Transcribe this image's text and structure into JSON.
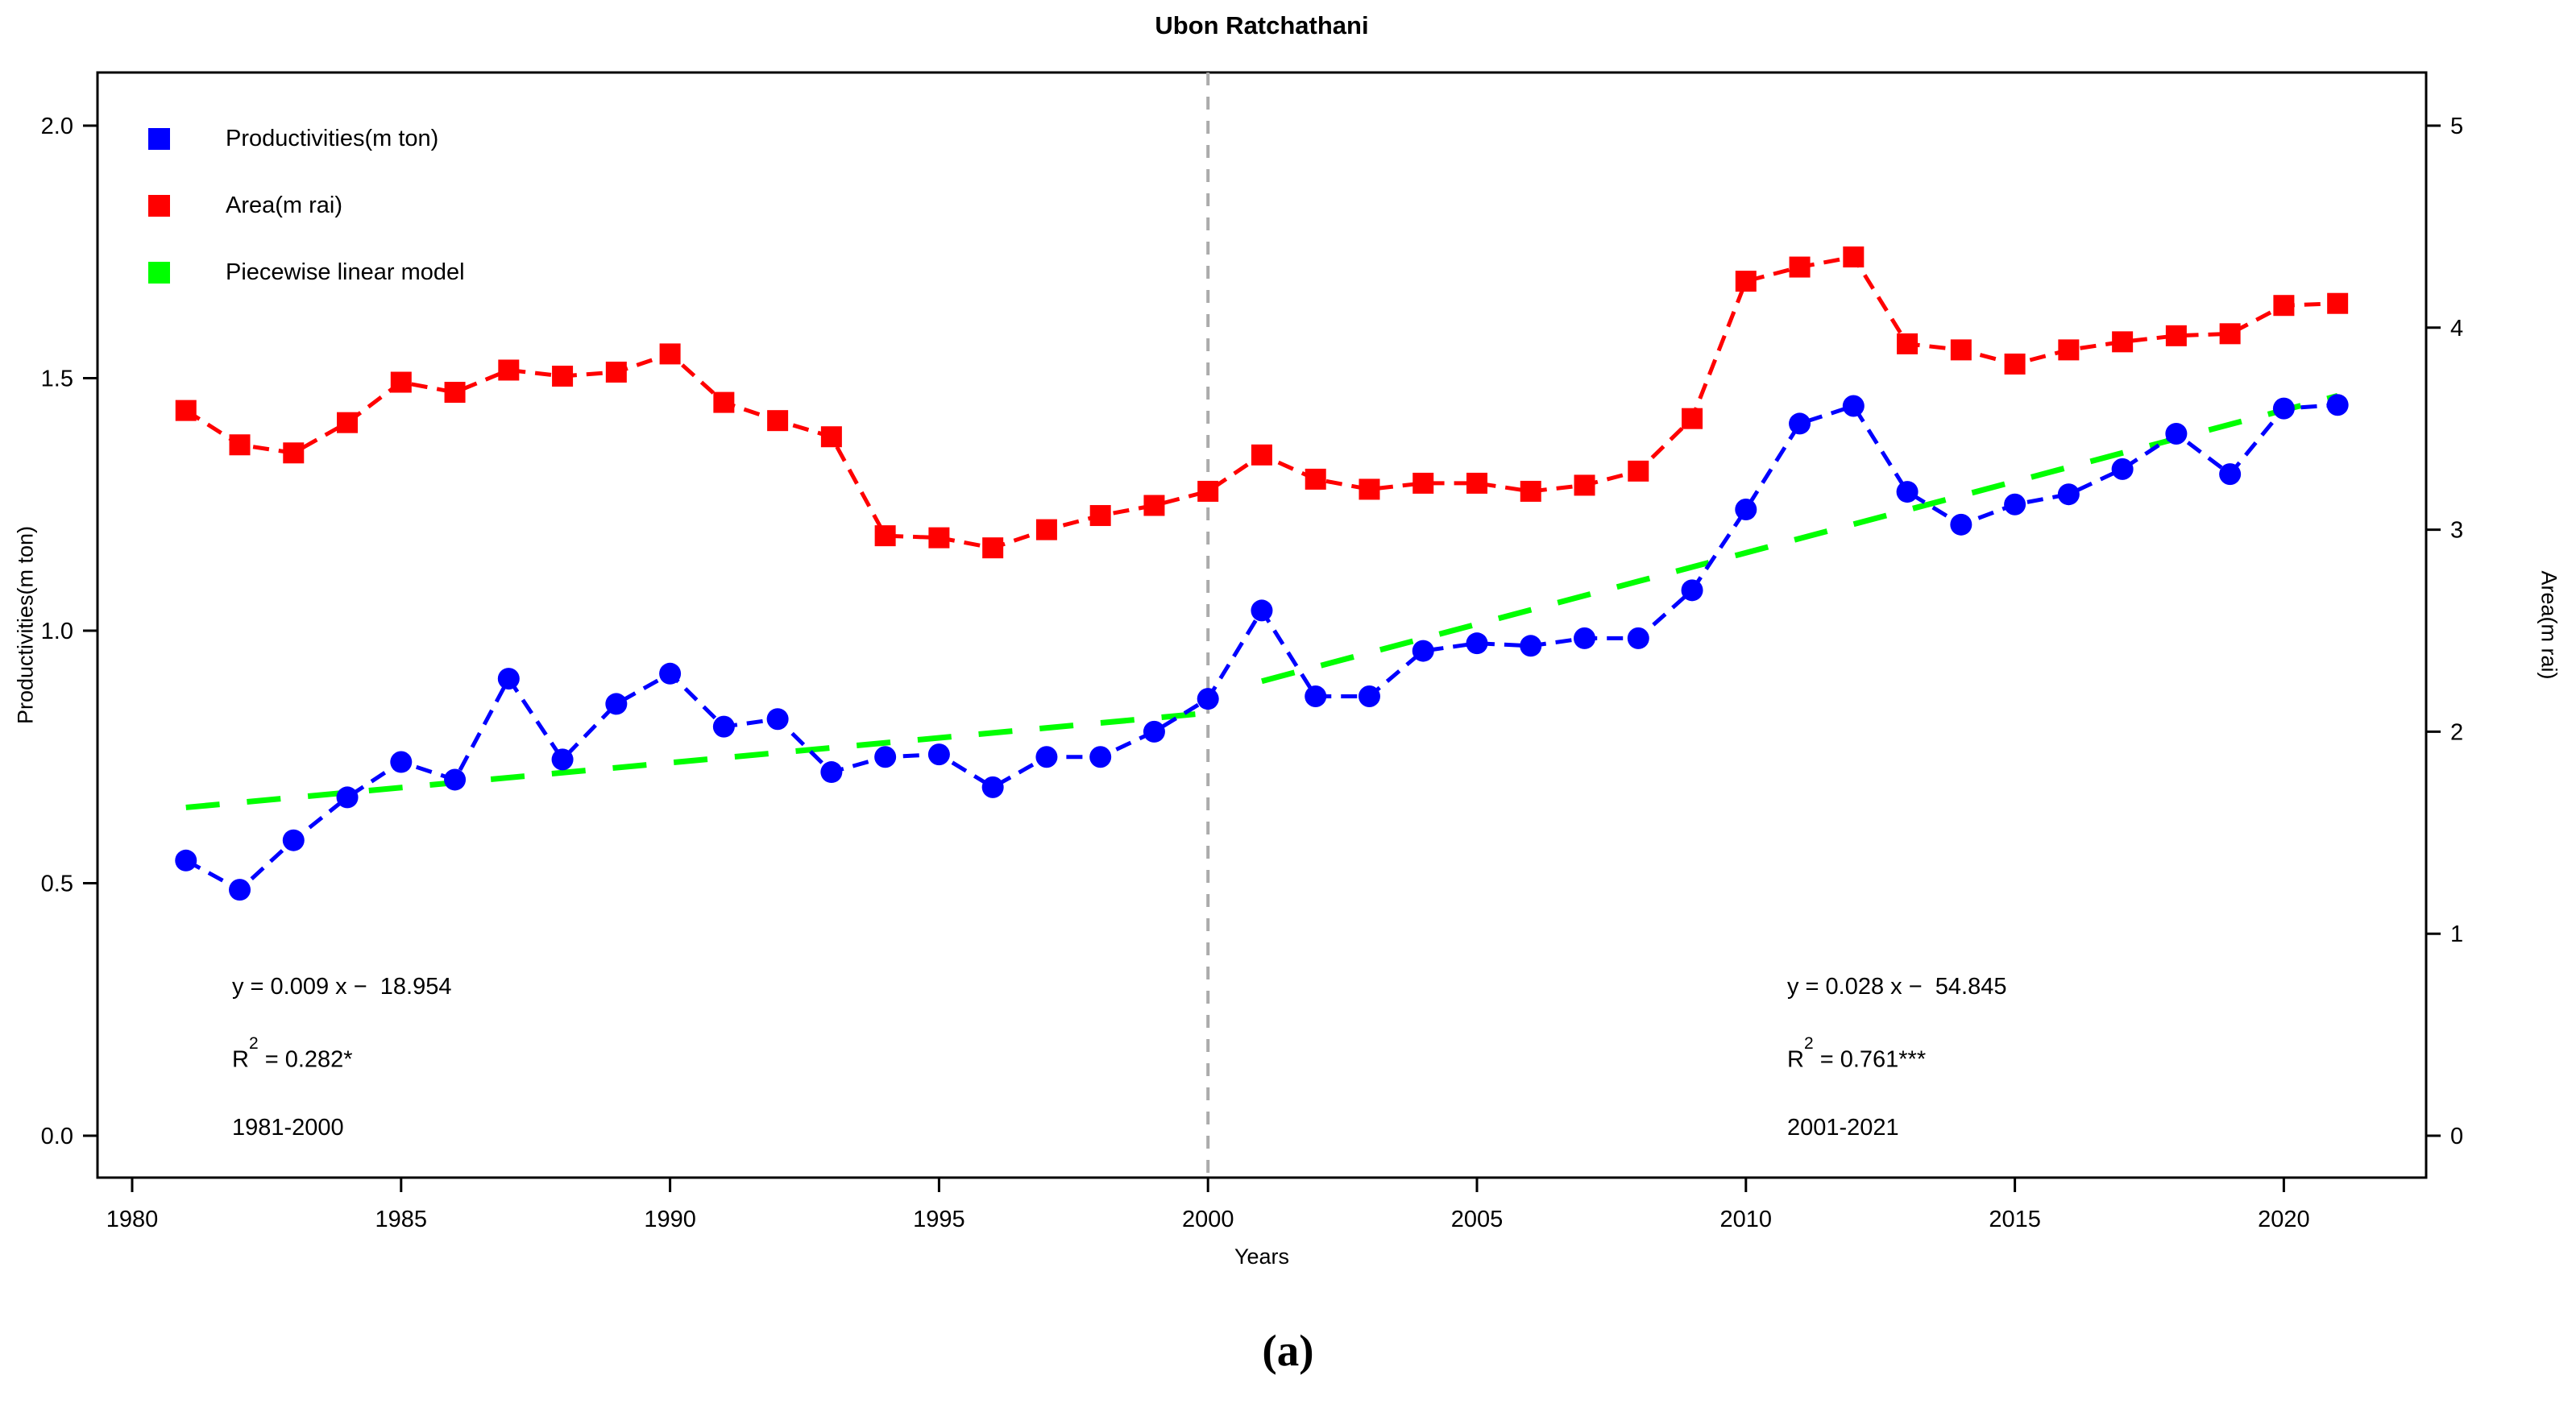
{
  "title": "Ubon Ratchathani",
  "caption": "(a)",
  "legend": [
    {
      "label": "Productivities(m ton)",
      "color": "#0000ff"
    },
    {
      "label": "Area(m rai)",
      "color": "#ff0000"
    },
    {
      "label": "Piecewise linear model",
      "color": "#00ff00"
    }
  ],
  "annotations": {
    "left": {
      "equation": "y = 0.009 x −  18.954",
      "r2_base": "R",
      "r2_sup": "2",
      "r2_rest": " = 0.282*",
      "period": "1981-2000"
    },
    "right": {
      "equation": "y = 0.028 x −  54.845",
      "r2_base": "R",
      "r2_sup": "2",
      "r2_rest": " = 0.761***",
      "period": "2001-2021"
    }
  },
  "chart_data": {
    "type": "line",
    "title": "Ubon Ratchathani",
    "xlabel": "Years",
    "ylabel_left": "Productivities(m ton)",
    "ylabel_right": "Area(m rai)",
    "x_ticks": [
      1980,
      1985,
      1990,
      1995,
      2000,
      2005,
      2010,
      2015,
      2020
    ],
    "y_ticks_left": [
      "0.0",
      "0.5",
      "1.0",
      "1.5",
      "2.0"
    ],
    "y_ticks_right": [
      "0",
      "1",
      "2",
      "3",
      "4",
      "5"
    ],
    "ylim_left": [
      0.0,
      2.0
    ],
    "ylim_right": [
      0,
      5
    ],
    "xlim": [
      1980,
      2022
    ],
    "grid": false,
    "legend_position": "top-left",
    "break_line_x": 2000,
    "years": [
      1981,
      1982,
      1983,
      1984,
      1985,
      1986,
      1987,
      1988,
      1989,
      1990,
      1991,
      1992,
      1993,
      1994,
      1995,
      1996,
      1997,
      1998,
      1999,
      2000,
      2001,
      2002,
      2003,
      2004,
      2005,
      2006,
      2007,
      2008,
      2009,
      2010,
      2011,
      2012,
      2013,
      2014,
      2015,
      2016,
      2017,
      2018,
      2019,
      2020,
      2021
    ],
    "series": [
      {
        "name": "Productivities(m ton)",
        "axis": "left",
        "color": "#0000ff",
        "marker": "circle",
        "values": [
          0.545,
          0.487,
          0.585,
          0.67,
          0.74,
          0.705,
          0.905,
          0.745,
          0.855,
          0.915,
          0.81,
          0.825,
          0.72,
          0.75,
          0.755,
          0.69,
          0.75,
          0.75,
          0.8,
          0.865,
          1.04,
          0.87,
          0.87,
          0.96,
          0.975,
          0.97,
          0.985,
          0.985,
          1.08,
          1.24,
          1.41,
          1.445,
          1.275,
          1.21,
          1.25,
          1.27,
          1.32,
          1.39,
          1.31,
          1.44,
          1.447
        ]
      },
      {
        "name": "Area(m rai)",
        "axis": "right",
        "color": "#ff0000",
        "marker": "square",
        "values": [
          3.59,
          3.42,
          3.38,
          3.53,
          3.73,
          3.68,
          3.79,
          3.76,
          3.78,
          3.87,
          3.63,
          3.54,
          3.46,
          2.97,
          2.96,
          2.91,
          3.0,
          3.07,
          3.12,
          3.19,
          3.37,
          3.25,
          3.2,
          3.23,
          3.23,
          3.19,
          3.22,
          3.29,
          3.55,
          4.23,
          4.3,
          4.35,
          3.92,
          3.89,
          3.82,
          3.89,
          3.93,
          3.96,
          3.97,
          4.11,
          4.12
        ]
      }
    ],
    "piecewise_model": {
      "name": "Piecewise linear model",
      "color": "#00ff00",
      "axis": "left",
      "segments": [
        {
          "x": [
            1981,
            2000
          ],
          "y": [
            0.65,
            0.837
          ]
        },
        {
          "x": [
            2001,
            2021
          ],
          "y": [
            0.9,
            1.465
          ]
        }
      ]
    }
  }
}
